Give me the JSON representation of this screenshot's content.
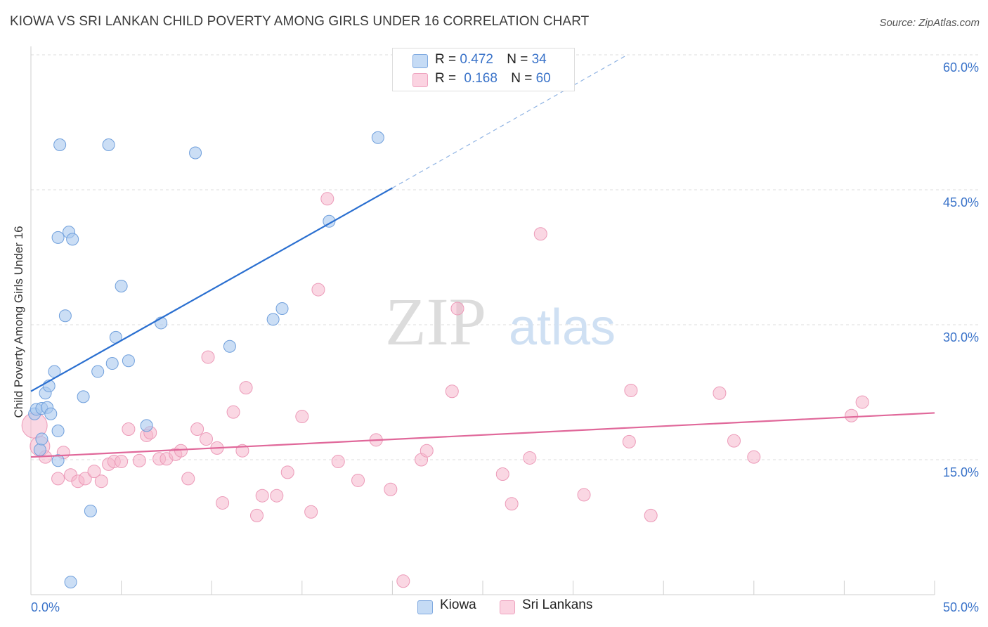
{
  "title": "KIOWA VS SRI LANKAN CHILD POVERTY AMONG GIRLS UNDER 16 CORRELATION CHART",
  "source": "Source: ZipAtlas.com",
  "watermark": {
    "zip": "ZIP",
    "atlas": "atlas"
  },
  "legend": {
    "kiowa": {
      "r_label": "R =",
      "r_value": "0.472",
      "n_label": "N =",
      "n_value": "34"
    },
    "srilankans": {
      "r_label": "R =",
      "r_value": "0.168",
      "n_label": "N =",
      "n_value": "60"
    }
  },
  "chart_data": {
    "type": "scatter",
    "ylabel": "Child Poverty Among Girls Under 16",
    "xlim": [
      0,
      50
    ],
    "ylim": [
      0,
      60
    ],
    "x_tick_labels": {
      "left": "0.0%",
      "right": "50.0%"
    },
    "y_ticks": [
      15,
      30,
      45,
      60
    ],
    "y_tick_labels": [
      "15.0%",
      "30.0%",
      "45.0%",
      "60.0%"
    ],
    "grid": true,
    "legend_position": "top-center",
    "colors": {
      "kiowa": "#a9c8ee",
      "kiowa_line": "#2a6fd0",
      "srilankans": "#f5b6cc",
      "srilankans_line": "#e0689a",
      "axis_text": "#3a73c9"
    },
    "series": [
      {
        "name": "Kiowa",
        "points": [
          [
            0.2,
            20.1
          ],
          [
            0.3,
            20.6
          ],
          [
            0.5,
            16.1
          ],
          [
            0.6,
            17.3
          ],
          [
            0.6,
            20.7
          ],
          [
            0.8,
            22.4
          ],
          [
            0.9,
            20.8
          ],
          [
            1.0,
            23.2
          ],
          [
            1.1,
            20.1
          ],
          [
            1.3,
            24.8
          ],
          [
            1.5,
            18.2
          ],
          [
            1.5,
            14.9
          ],
          [
            1.6,
            50.0
          ],
          [
            1.9,
            31.0
          ],
          [
            1.5,
            39.7
          ],
          [
            2.1,
            40.3
          ],
          [
            2.3,
            39.5
          ],
          [
            2.9,
            22.0
          ],
          [
            3.3,
            9.3
          ],
          [
            3.7,
            24.8
          ],
          [
            2.2,
            1.4
          ],
          [
            4.3,
            50.0
          ],
          [
            4.5,
            25.7
          ],
          [
            4.7,
            28.6
          ],
          [
            5.0,
            34.3
          ],
          [
            5.4,
            26.0
          ],
          [
            6.4,
            18.8
          ],
          [
            7.2,
            30.2
          ],
          [
            9.1,
            49.1
          ],
          [
            11.0,
            27.6
          ],
          [
            13.4,
            30.6
          ],
          [
            13.9,
            31.8
          ],
          [
            16.5,
            41.5
          ],
          [
            19.2,
            50.8
          ]
        ],
        "trend": {
          "x": [
            0,
            20
          ],
          "y": [
            22.6,
            45.2
          ],
          "dashed_to": [
            33,
            60.0
          ]
        }
      },
      {
        "name": "Sri Lankans",
        "points": [
          [
            0.2,
            18.8
          ],
          [
            0.5,
            16.5
          ],
          [
            0.8,
            15.3
          ],
          [
            1.5,
            12.9
          ],
          [
            1.8,
            15.8
          ],
          [
            2.2,
            13.3
          ],
          [
            2.6,
            12.6
          ],
          [
            3.0,
            12.9
          ],
          [
            3.5,
            13.7
          ],
          [
            3.9,
            12.6
          ],
          [
            4.3,
            14.5
          ],
          [
            4.6,
            14.8
          ],
          [
            5.0,
            14.8
          ],
          [
            5.4,
            18.4
          ],
          [
            6.0,
            14.9
          ],
          [
            6.4,
            17.7
          ],
          [
            6.6,
            18.0
          ],
          [
            7.1,
            15.1
          ],
          [
            7.5,
            15.1
          ],
          [
            8.0,
            15.6
          ],
          [
            8.3,
            16.0
          ],
          [
            8.7,
            12.9
          ],
          [
            9.2,
            18.4
          ],
          [
            9.7,
            17.3
          ],
          [
            9.8,
            26.4
          ],
          [
            10.3,
            16.3
          ],
          [
            10.6,
            10.2
          ],
          [
            11.2,
            20.3
          ],
          [
            11.7,
            16.0
          ],
          [
            11.9,
            23.0
          ],
          [
            12.5,
            8.8
          ],
          [
            12.8,
            11.0
          ],
          [
            13.6,
            11.0
          ],
          [
            14.2,
            13.6
          ],
          [
            15.0,
            19.8
          ],
          [
            15.5,
            9.2
          ],
          [
            15.9,
            33.9
          ],
          [
            16.4,
            44.0
          ],
          [
            17.0,
            14.8
          ],
          [
            18.1,
            12.7
          ],
          [
            19.1,
            17.2
          ],
          [
            19.9,
            11.7
          ],
          [
            20.6,
            1.5
          ],
          [
            21.6,
            15.0
          ],
          [
            21.9,
            16.0
          ],
          [
            23.3,
            22.6
          ],
          [
            23.6,
            31.8
          ],
          [
            26.1,
            13.4
          ],
          [
            26.6,
            10.1
          ],
          [
            27.6,
            15.2
          ],
          [
            28.2,
            40.1
          ],
          [
            30.6,
            11.1
          ],
          [
            33.1,
            17.0
          ],
          [
            33.2,
            22.7
          ],
          [
            34.3,
            8.8
          ],
          [
            38.1,
            22.4
          ],
          [
            38.9,
            17.1
          ],
          [
            40.0,
            15.3
          ],
          [
            45.4,
            19.9
          ],
          [
            46.0,
            21.4
          ]
        ],
        "trend": {
          "x": [
            0,
            50
          ],
          "y": [
            15.3,
            20.2
          ]
        }
      }
    ]
  },
  "bottom_legend": {
    "kiowa": "Kiowa",
    "srilankans": "Sri Lankans"
  }
}
